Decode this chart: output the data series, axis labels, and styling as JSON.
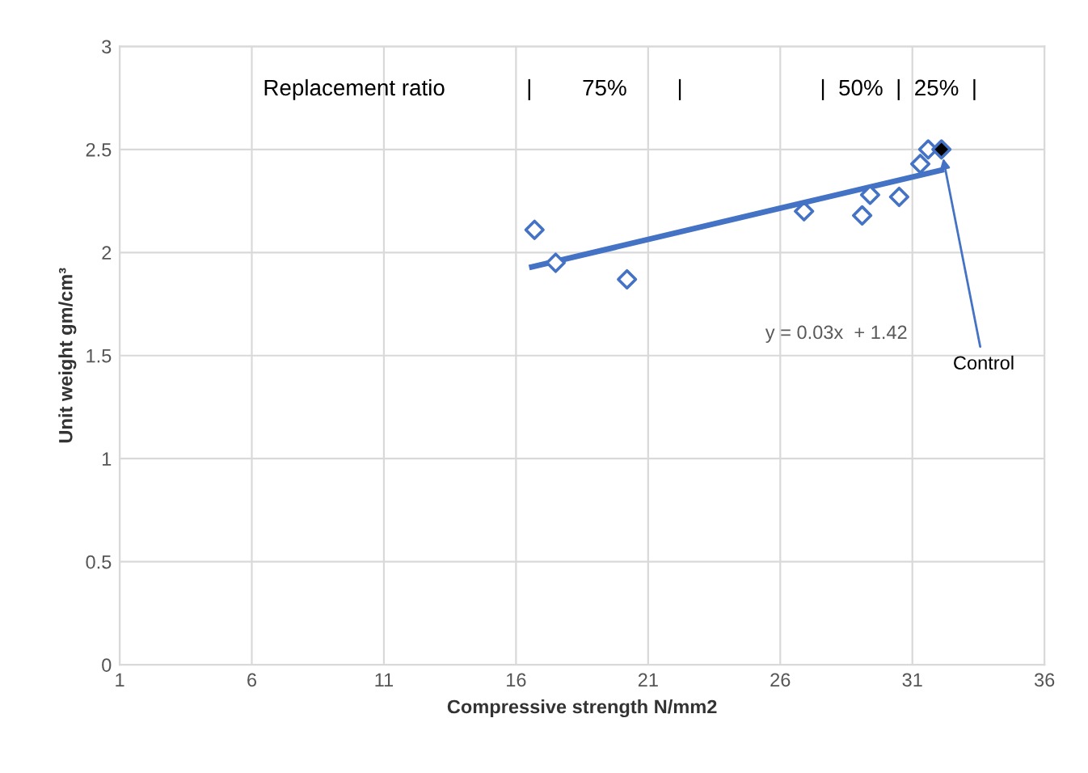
{
  "chart_data": {
    "type": "scatter",
    "xlabel": "Compressive strength N/mm2",
    "ylabel": "Unit weight gm/cm³",
    "xlim": [
      1,
      36
    ],
    "ylim": [
      0,
      3
    ],
    "xticks": [
      1,
      6,
      11,
      16,
      21,
      26,
      31,
      36
    ],
    "yticks": [
      0,
      0.5,
      1,
      1.5,
      2,
      2.5,
      3
    ],
    "grid": true,
    "series": [
      {
        "marker": "diamond",
        "color": "#4472c4",
        "x": [
          16.7,
          17.5,
          20.2,
          26.9,
          29.1,
          29.4,
          30.5,
          31.3,
          31.6
        ],
        "values": [
          2.11,
          1.95,
          1.87,
          2.2,
          2.18,
          2.28,
          2.27,
          2.43,
          2.5
        ]
      },
      {
        "marker": "diamond",
        "color": "#000000",
        "x": [
          32.1
        ],
        "values": [
          2.5
        ]
      },
      {
        "type": "line",
        "marker": "none",
        "color": "#4472c4",
        "x": [
          16.6,
          32.1
        ],
        "values": [
          1.93,
          2.4
        ]
      }
    ],
    "annotations": [
      "Replacement ratio             |        75%        |                      |  50%  |  25%  |",
      "y = 0.03x  + 1.42",
      {
        "text": "Control",
        "x": 32.1,
        "y": 2.5
      }
    ]
  }
}
